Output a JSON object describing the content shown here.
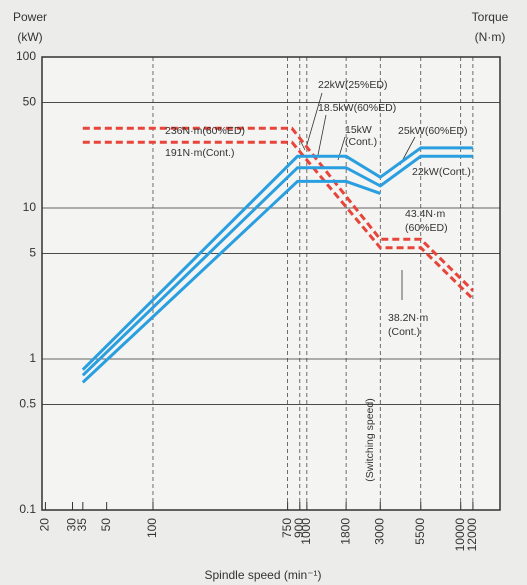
{
  "chart_data": {
    "type": "line",
    "y_title": [
      "Power",
      "(kW)"
    ],
    "y2_title": [
      "Torque",
      "(N·m)"
    ],
    "x_title": "Spindle speed (min⁻¹)",
    "log_x": true,
    "log_y": true,
    "xlim": [
      19,
      18000
    ],
    "ylim": [
      0.1,
      100
    ],
    "y2lim": [
      0.7,
      700
    ],
    "xticks": [
      20,
      30,
      35,
      50,
      100,
      750,
      900,
      1000,
      1800,
      3000,
      5500,
      10000,
      12000
    ],
    "yticks": [
      0.1,
      0.5,
      1,
      5,
      10,
      50,
      100
    ],
    "xgrid": [
      100,
      750,
      900,
      1000,
      1800,
      3000,
      5500,
      10000,
      12000
    ],
    "grid": true,
    "x": [
      35,
      870,
      1800,
      3000,
      5500,
      12000
    ],
    "series": [
      {
        "color": "#2a9fe0",
        "values": [
          0.85,
          22,
          22,
          16,
          25,
          25
        ]
      },
      {
        "color": "#2a9fe0",
        "values": [
          0.78,
          18.5,
          18.5,
          14,
          22,
          22
        ]
      },
      {
        "color": "#2a9fe0",
        "values": [
          0.7,
          15,
          15,
          12.5,
          null,
          null
        ]
      }
    ],
    "torque_x": [
      35,
      800,
      3000,
      5500,
      12000
    ],
    "torque_series": [
      {
        "color": "#e8443a",
        "axis": "y2",
        "values": [
          236,
          236,
          43.4,
          43.4,
          19.9
        ]
      },
      {
        "color": "#e8443a",
        "axis": "y2",
        "values": [
          191,
          191,
          38.2,
          38.2,
          17.5
        ]
      }
    ],
    "annotations": [
      "236N·m(60%ED)",
      "191N·m(Cont.)",
      "22kW(25%ED)",
      "18.5kW(60%ED)",
      "15kW",
      "(Cont.)",
      "25kW(60%ED)",
      "22kW(Cont.)",
      "43.4N·m",
      "(60%ED)",
      "38.2N·m",
      "(Cont.)",
      "(Switching speed)"
    ]
  }
}
